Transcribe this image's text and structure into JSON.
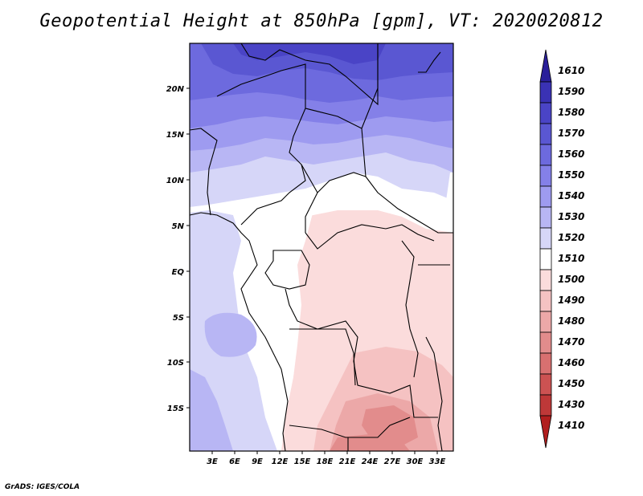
{
  "title": "Geopotential Height at 850hPa [gpm], VT: 2020020812",
  "credit": "GrADS: IGES/COLA",
  "map": {
    "lat_ticks": [
      "20N",
      "15N",
      "10N",
      "5N",
      "EQ",
      "5S",
      "10S",
      "15S"
    ],
    "lon_ticks": [
      "3E",
      "6E",
      "9E",
      "12E",
      "15E",
      "18E",
      "21E",
      "24E",
      "27E",
      "30E",
      "33E"
    ]
  },
  "colorbar": {
    "levels": [
      "1610",
      "1590",
      "1580",
      "1570",
      "1560",
      "1550",
      "1540",
      "1530",
      "1520",
      "1510",
      "1500",
      "1490",
      "1480",
      "1470",
      "1460",
      "1450",
      "1430",
      "1410"
    ],
    "colors": [
      "#2a1f9a",
      "#3a32b4",
      "#4a44c6",
      "#5a57d2",
      "#6d6ade",
      "#8480e8",
      "#9e9bf0",
      "#b8b6f4",
      "#d6d6f8",
      "#ffffff",
      "#fbdcdc",
      "#f5c2c2",
      "#eca8a8",
      "#e28c8c",
      "#d87070",
      "#cc5252",
      "#be3838",
      "#b01e1e"
    ]
  },
  "colors": {
    "high": "#2a1f9a",
    "neutral": "#ffffff",
    "low": "#b01e1e"
  }
}
